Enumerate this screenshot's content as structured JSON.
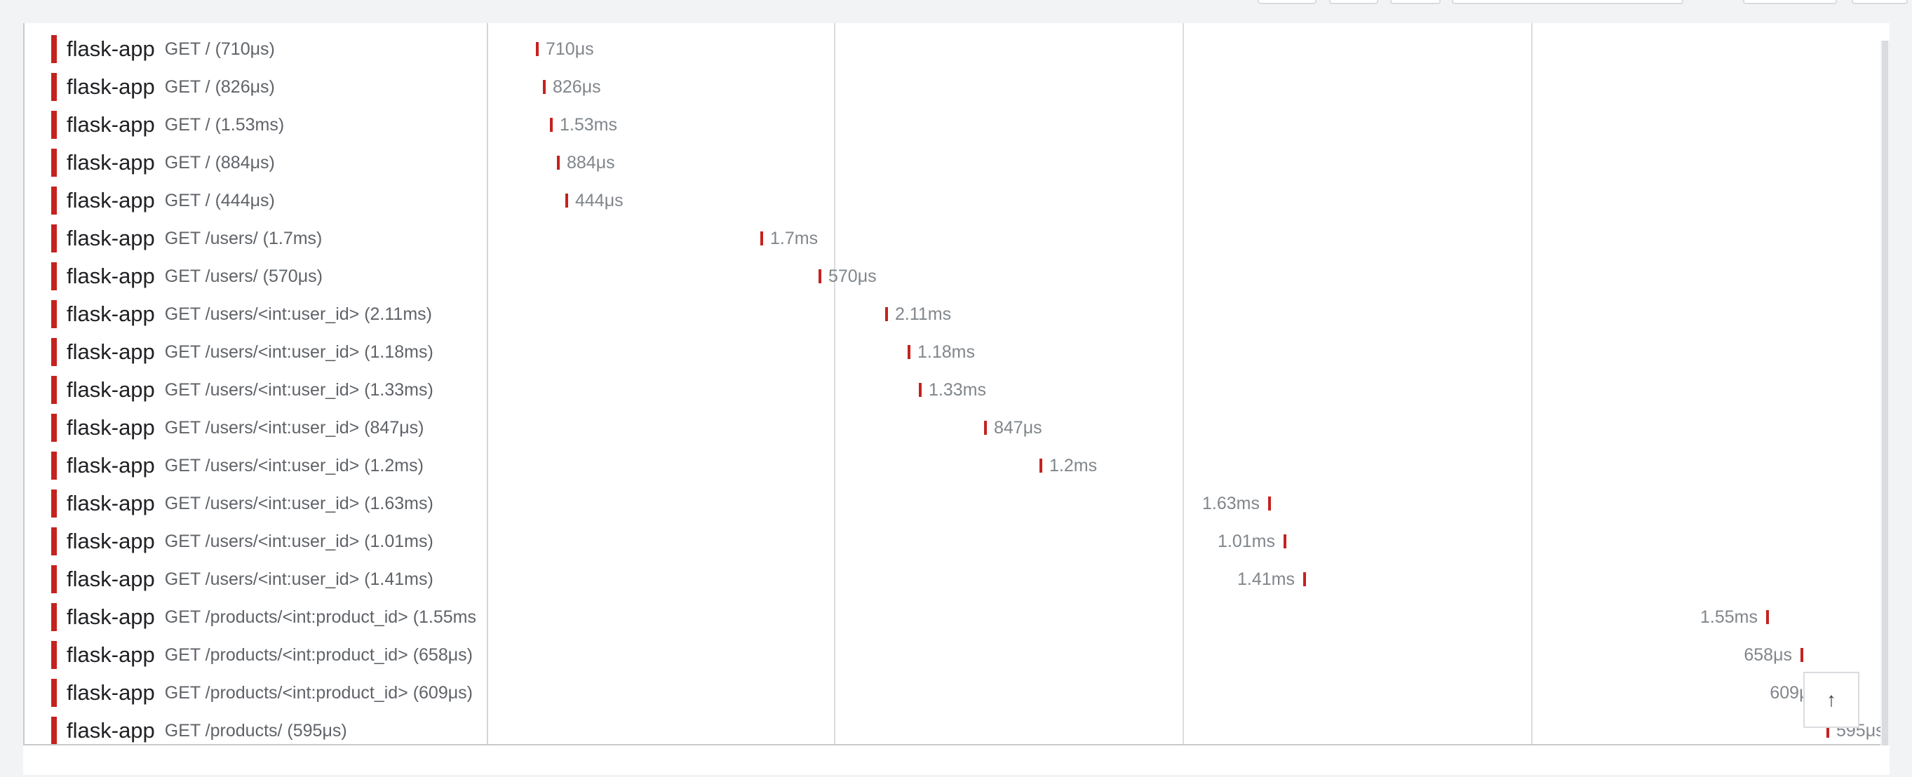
{
  "rows": [
    {
      "service": "flask-app",
      "operation": "GET / (710μs)",
      "duration": "710μs"
    },
    {
      "service": "flask-app",
      "operation": "GET / (826μs)",
      "duration": "826μs"
    },
    {
      "service": "flask-app",
      "operation": "GET / (1.53ms)",
      "duration": "1.53ms"
    },
    {
      "service": "flask-app",
      "operation": "GET / (884μs)",
      "duration": "884μs"
    },
    {
      "service": "flask-app",
      "operation": "GET / (444μs)",
      "duration": "444μs"
    },
    {
      "service": "flask-app",
      "operation": "GET /users/ (1.7ms)",
      "duration": "1.7ms"
    },
    {
      "service": "flask-app",
      "operation": "GET /users/ (570μs)",
      "duration": "570μs"
    },
    {
      "service": "flask-app",
      "operation": "GET /users/<int:user_id> (2.11ms)",
      "duration": "2.11ms"
    },
    {
      "service": "flask-app",
      "operation": "GET /users/<int:user_id> (1.18ms)",
      "duration": "1.18ms"
    },
    {
      "service": "flask-app",
      "operation": "GET /users/<int:user_id> (1.33ms)",
      "duration": "1.33ms"
    },
    {
      "service": "flask-app",
      "operation": "GET /users/<int:user_id> (847μs)",
      "duration": "847μs"
    },
    {
      "service": "flask-app",
      "operation": "GET /users/<int:user_id> (1.2ms)",
      "duration": "1.2ms"
    },
    {
      "service": "flask-app",
      "operation": "GET /users/<int:user_id> (1.63ms)",
      "duration": "1.63ms"
    },
    {
      "service": "flask-app",
      "operation": "GET /users/<int:user_id> (1.01ms)",
      "duration": "1.01ms"
    },
    {
      "service": "flask-app",
      "operation": "GET /users/<int:user_id> (1.41ms)",
      "duration": "1.41ms"
    },
    {
      "service": "flask-app",
      "operation": "GET /products/<int:product_id> (1.55ms",
      "duration": "1.55ms"
    },
    {
      "service": "flask-app",
      "operation": "GET /products/<int:product_id> (658μs)",
      "duration": "658μs"
    },
    {
      "service": "flask-app",
      "operation": "GET /products/<int:product_id> (609μs)",
      "duration": "609μs"
    },
    {
      "service": "flask-app",
      "operation": "GET /products/ (595μs)",
      "duration": "595μs"
    }
  ],
  "colors": {
    "span": "#c5221f"
  },
  "scroll_top_button": {
    "icon": "arrow-up-icon",
    "glyph": "↑"
  }
}
